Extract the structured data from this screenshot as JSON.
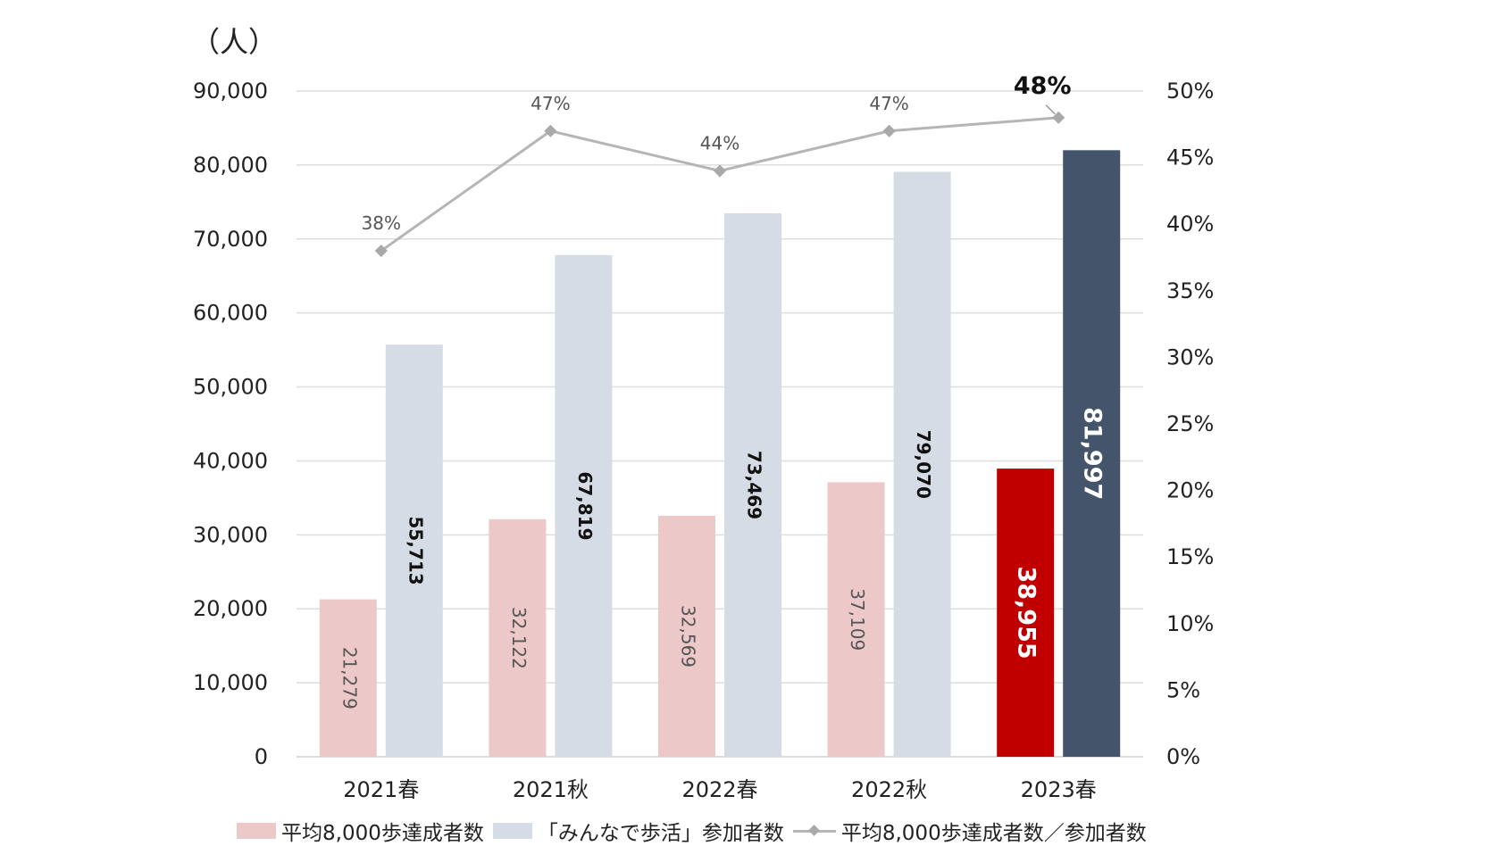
{
  "chart_data": {
    "type": "bar",
    "y_unit_label": "（人）",
    "categories": [
      "2021春",
      "2021秋",
      "2022春",
      "2022秋",
      "2023春"
    ],
    "series": [
      {
        "name": "平均8,000歩達成者数",
        "axis": "left",
        "values": [
          21279,
          32122,
          32569,
          37109,
          38955
        ],
        "labels": [
          "21,279",
          "32,122",
          "32,569",
          "37,109",
          "38,955"
        ],
        "color": "#ecc8c8",
        "highlight_color": "#c00000"
      },
      {
        "name": "「みんなで歩活」参加者数",
        "axis": "left",
        "values": [
          55713,
          67819,
          73469,
          79070,
          81997
        ],
        "labels": [
          "55,713",
          "67,819",
          "73,469",
          "79,070",
          "81,997"
        ],
        "color": "#d6dce5",
        "highlight_color": "#44546a"
      },
      {
        "name": "平均8,000歩達成者数／参加者数",
        "type": "line",
        "axis": "right",
        "values": [
          38,
          47,
          44,
          47,
          48
        ],
        "labels": [
          "38%",
          "47%",
          "44%",
          "47%",
          "48%"
        ],
        "color": "#b5b5b5"
      }
    ],
    "highlight_category_index": 4,
    "ylim": [
      0,
      90000
    ],
    "y_ticks": [
      "0",
      "10,000",
      "20,000",
      "30,000",
      "40,000",
      "50,000",
      "60,000",
      "70,000",
      "80,000",
      "90,000"
    ],
    "y2lim": [
      0,
      50
    ],
    "y2_ticks": [
      "0%",
      "5%",
      "10%",
      "15%",
      "20%",
      "25%",
      "30%",
      "35%",
      "40%",
      "45%",
      "50%"
    ],
    "grid": true,
    "legend_position": "bottom"
  }
}
